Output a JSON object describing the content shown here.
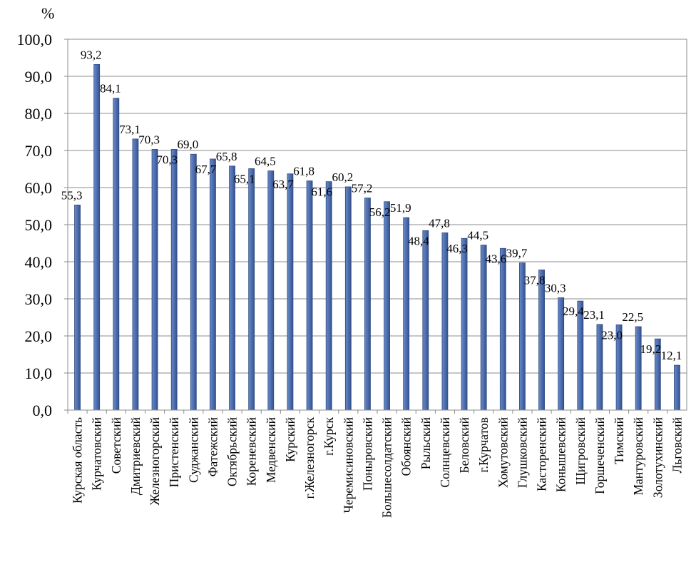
{
  "chart_data": {
    "type": "bar",
    "ylabel": "%",
    "ylim": [
      0,
      100
    ],
    "ytick_step": 10,
    "ytick_labels": [
      "0,0",
      "10,0",
      "20,0",
      "30,0",
      "40,0",
      "50,0",
      "60,0",
      "70,0",
      "80,0",
      "90,0",
      "100,0"
    ],
    "grid": true,
    "legend": "none",
    "bar_color": "#4F6FB0",
    "categories": [
      "Курская область",
      "Курчатовский",
      "Советский",
      "Дмитриевский",
      "Железногорский",
      "Пристенский",
      "Суджанский",
      "Фатежский",
      "Октябрьский",
      "Кореневский",
      "Медвенский",
      "Курский",
      "г.Железногорск",
      "г.Курск",
      "Черемисиновский",
      "Поныровский",
      "Большесолдатский",
      "Обоянский",
      "Рыльский",
      "Солнцевский",
      "Беловский",
      "г.Курчатов",
      "Хомутовский",
      "Глушковский",
      "Касторенский",
      "Конышевский",
      "Щигровский",
      "Горшеченский",
      "Тимский",
      "Мантуровский",
      "Золотухинский",
      "Льговский"
    ],
    "values": [
      55.3,
      93.2,
      84.1,
      73.1,
      70.3,
      70.3,
      69.0,
      67.7,
      65.8,
      65.1,
      64.5,
      63.7,
      61.8,
      61.6,
      60.2,
      57.2,
      56.2,
      51.9,
      48.4,
      47.8,
      46.3,
      44.5,
      43.6,
      39.7,
      37.8,
      30.3,
      29.4,
      23.1,
      23.0,
      22.5,
      19.2,
      12.1
    ],
    "value_labels": [
      "55,3",
      "93,2",
      "84,1",
      "73,1",
      "70,3",
      "70,3",
      "69,0",
      "67,7",
      "65,8",
      "65,1",
      "64,5",
      "63,7",
      "61,8",
      "61,6",
      "60,2",
      "57,2",
      "56,2",
      "51,9",
      "48,4",
      "47,8",
      "46,3",
      "44,5",
      "43,6",
      "39,7",
      "37,8",
      "30,3",
      "29,4",
      "23,1",
      "23,0",
      "22,5",
      "19,2",
      "12,1"
    ]
  }
}
